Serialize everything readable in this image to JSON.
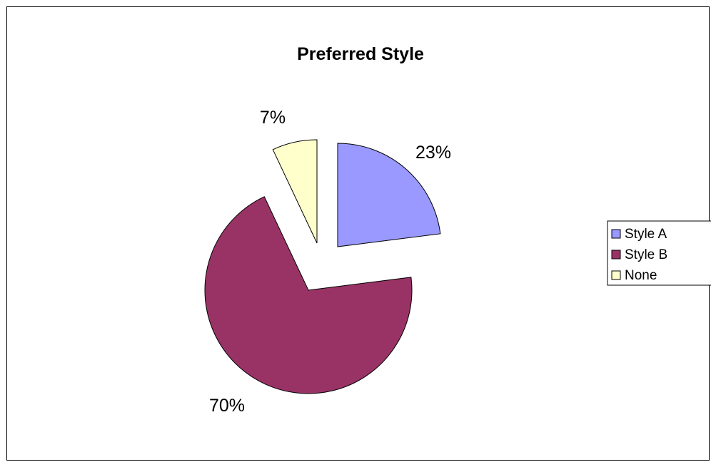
{
  "chart_data": {
    "type": "pie",
    "title": "Preferred Style",
    "categories": [
      "Style A",
      "Style B",
      "None"
    ],
    "values": [
      23,
      70,
      7
    ],
    "data_labels": [
      "23%",
      "70%",
      "7%"
    ],
    "exploded": true,
    "legend_position": "right",
    "colors": [
      "#9999ff",
      "#993366",
      "#ffffcc"
    ]
  }
}
